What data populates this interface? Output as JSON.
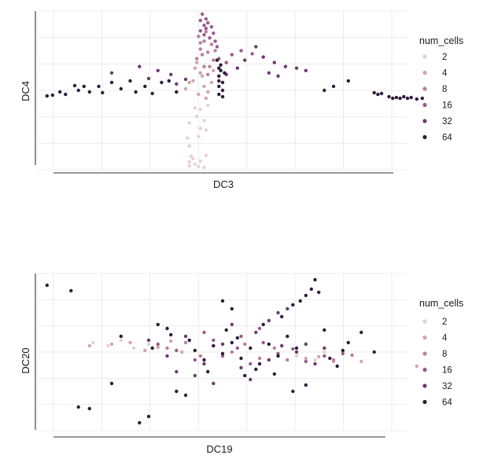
{
  "chart_data": [
    {
      "type": "scatter",
      "xlabel": "DC3",
      "ylabel": "DC4",
      "xlim": [
        -1,
        1
      ],
      "ylim": [
        -1,
        1
      ],
      "tick_labels": "none",
      "grid": true,
      "legend": {
        "title": "num_cells",
        "placement": "right",
        "entries": [
          {
            "label": "2",
            "color": "#e9cfcf"
          },
          {
            "label": "4",
            "color": "#d3a4ad"
          },
          {
            "label": "8",
            "color": "#bc7e9a"
          },
          {
            "label": "16",
            "color": "#99598d"
          },
          {
            "label": "32",
            "color": "#6c3a70"
          },
          {
            "label": "64",
            "color": "#2f1a3b"
          }
        ]
      },
      "series": [
        {
          "name": "2",
          "points": [
            [
              -0.19,
              -0.6
            ],
            [
              -0.18,
              -0.7
            ],
            [
              -0.16,
              -0.86
            ],
            [
              -0.17,
              -0.83
            ],
            [
              -0.18,
              -0.9
            ],
            [
              -0.18,
              -0.95
            ],
            [
              -0.15,
              -0.93
            ],
            [
              -0.13,
              -0.96
            ],
            [
              -0.12,
              -0.89
            ],
            [
              -0.1,
              -0.97
            ],
            [
              -0.09,
              -0.82
            ],
            [
              -0.14,
              -0.33
            ],
            [
              -0.12,
              -0.48
            ],
            [
              -0.09,
              -0.5
            ],
            [
              -0.1,
              -0.38
            ],
            [
              -0.12,
              -0.24
            ],
            [
              -0.08,
              -0.19
            ],
            [
              -0.15,
              -0.22
            ],
            [
              -0.18,
              -0.41
            ],
            [
              -0.13,
              -0.58
            ]
          ]
        },
        {
          "name": "4",
          "points": [
            [
              -0.15,
              0.28
            ],
            [
              -0.12,
              0.22
            ],
            [
              -0.16,
              0.12
            ],
            [
              -0.1,
              0.05
            ],
            [
              -0.08,
              -0.02
            ],
            [
              -0.18,
              0.1
            ],
            [
              -0.13,
              -0.05
            ],
            [
              -0.2,
              0.02
            ],
            [
              -0.14,
              0.35
            ],
            [
              -0.05,
              0.25
            ],
            [
              -0.06,
              0.1
            ],
            [
              -0.09,
              -0.1
            ],
            [
              -0.11,
              0.18
            ]
          ]
        },
        {
          "name": "8",
          "points": [
            [
              -0.14,
              0.4
            ],
            [
              -0.12,
              0.52
            ],
            [
              -0.1,
              0.62
            ],
            [
              -0.08,
              0.48
            ],
            [
              -0.06,
              0.58
            ],
            [
              -0.13,
              0.68
            ],
            [
              -0.09,
              0.74
            ],
            [
              -0.05,
              0.38
            ],
            [
              -0.07,
              0.3
            ],
            [
              -0.11,
              0.45
            ],
            [
              -0.04,
              0.5
            ],
            [
              -0.12,
              0.6
            ],
            [
              -0.08,
              0.2
            ],
            [
              -0.1,
              0.3
            ]
          ]
        },
        {
          "name": "16",
          "points": [
            [
              -0.12,
              0.75
            ],
            [
              -0.1,
              0.82
            ],
            [
              -0.09,
              0.9
            ],
            [
              -0.11,
              0.96
            ],
            [
              -0.08,
              0.85
            ],
            [
              -0.06,
              0.8
            ],
            [
              -0.05,
              0.72
            ],
            [
              -0.07,
              0.66
            ],
            [
              -0.1,
              0.7
            ],
            [
              -0.04,
              0.62
            ],
            [
              -0.03,
              0.55
            ],
            [
              -0.12,
              0.88
            ],
            [
              -0.09,
              0.78
            ],
            [
              0.05,
              0.45
            ],
            [
              0.1,
              0.5
            ],
            [
              0.16,
              0.46
            ],
            [
              -0.02,
              0.4
            ],
            [
              0.02,
              0.35
            ]
          ]
        },
        {
          "name": "32",
          "points": [
            [
              -0.45,
              0.3
            ],
            [
              -0.35,
              0.25
            ],
            [
              -0.28,
              0.2
            ],
            [
              -0.25,
              0.08
            ],
            [
              0.02,
              0.2
            ],
            [
              0.08,
              0.28
            ],
            [
              0.12,
              0.38
            ],
            [
              0.18,
              0.55
            ],
            [
              0.22,
              0.42
            ],
            [
              0.28,
              0.35
            ],
            [
              0.34,
              0.3
            ],
            [
              0.4,
              0.28
            ],
            [
              -0.6,
              0.22
            ],
            [
              -0.4,
              0.15
            ],
            [
              0.25,
              0.22
            ],
            [
              0.3,
              0.18
            ],
            [
              -0.2,
              0.14
            ],
            [
              0.45,
              0.25
            ]
          ]
        },
        {
          "name": "64",
          "points": [
            [
              -0.02,
              0.28
            ],
            [
              -0.02,
              0.18
            ],
            [
              -0.02,
              0.05
            ],
            [
              -0.02,
              -0.05
            ],
            [
              -0.02,
              0.12
            ],
            [
              0.0,
              0.1
            ],
            [
              0.0,
              0.0
            ],
            [
              0.0,
              -0.08
            ],
            [
              -0.01,
              0.25
            ],
            [
              -0.01,
              0.32
            ],
            [
              -0.03,
              0.38
            ],
            [
              0.01,
              0.22
            ],
            [
              -0.85,
              -0.05
            ],
            [
              -0.88,
              -0.02
            ],
            [
              -0.92,
              -0.06
            ],
            [
              -0.95,
              -0.07
            ],
            [
              -0.78,
              0.0
            ],
            [
              -0.72,
              -0.02
            ],
            [
              -0.67,
              0.05
            ],
            [
              -0.65,
              -0.03
            ],
            [
              -0.6,
              0.1
            ],
            [
              -0.55,
              0.02
            ],
            [
              -0.5,
              0.12
            ],
            [
              -0.47,
              -0.02
            ],
            [
              -0.42,
              0.05
            ],
            [
              -0.38,
              -0.04
            ],
            [
              -0.33,
              0.1
            ],
            [
              -0.29,
              0.12
            ],
            [
              -0.25,
              -0.02
            ],
            [
              -0.75,
              0.05
            ],
            [
              -0.8,
              0.06
            ],
            [
              0.6,
              0.05
            ],
            [
              0.68,
              0.12
            ],
            [
              0.82,
              -0.03
            ],
            [
              0.84,
              -0.05
            ],
            [
              0.86,
              -0.04
            ],
            [
              0.9,
              -0.08
            ],
            [
              0.92,
              -0.1
            ],
            [
              0.94,
              -0.09
            ],
            [
              0.96,
              -0.1
            ],
            [
              0.98,
              -0.08
            ],
            [
              1.0,
              -0.1
            ],
            [
              1.02,
              -0.09
            ],
            [
              1.05,
              -0.11
            ],
            [
              1.08,
              -0.1
            ],
            [
              0.55,
              0.0
            ]
          ]
        }
      ]
    },
    {
      "type": "scatter",
      "xlabel": "DC19",
      "ylabel": "DC20",
      "xlim": [
        -1,
        1
      ],
      "ylim": [
        -1,
        1
      ],
      "tick_labels": "none",
      "grid": true,
      "legend": {
        "title": "num_cells",
        "placement": "right",
        "entries": [
          {
            "label": "2",
            "color": "#e9cfcf"
          },
          {
            "label": "4",
            "color": "#d3a4ad"
          },
          {
            "label": "8",
            "color": "#bc7e9a"
          },
          {
            "label": "16",
            "color": "#99598d"
          },
          {
            "label": "32",
            "color": "#6c3a70"
          },
          {
            "label": "64",
            "color": "#2f1a3b"
          }
        ]
      },
      "series": [
        {
          "name": "2",
          "points": [
            [
              -0.7,
              0.12
            ],
            [
              -0.62,
              0.08
            ],
            [
              -0.55,
              0.15
            ],
            [
              -0.48,
              0.05
            ],
            [
              -0.4,
              0.1
            ],
            [
              0.4,
              -0.05
            ],
            [
              0.5,
              -0.1
            ],
            [
              0.55,
              0.0
            ]
          ]
        },
        {
          "name": "4",
          "points": [
            [
              -0.72,
              0.08
            ],
            [
              -0.6,
              0.1
            ],
            [
              -0.5,
              0.12
            ],
            [
              -0.42,
              0.02
            ],
            [
              -0.35,
              0.06
            ],
            [
              -0.28,
              0.14
            ],
            [
              -0.22,
              0.0
            ],
            [
              0.45,
              -0.08
            ],
            [
              0.52,
              -0.06
            ],
            [
              0.6,
              -0.12
            ],
            [
              0.75,
              -0.12
            ],
            [
              1.05,
              -0.18
            ]
          ]
        },
        {
          "name": "8",
          "points": [
            [
              -0.3,
              0.05
            ],
            [
              -0.2,
              0.12
            ],
            [
              -0.12,
              -0.05
            ],
            [
              -0.05,
              0.08
            ],
            [
              0.05,
              0.0
            ],
            [
              0.12,
              0.1
            ],
            [
              0.2,
              -0.08
            ],
            [
              0.28,
              0.05
            ],
            [
              0.35,
              -0.1
            ],
            [
              0.6,
              -0.1
            ],
            [
              0.7,
              -0.04
            ]
          ]
        },
        {
          "name": "16",
          "points": [
            [
              -0.35,
              0.1
            ],
            [
              -0.25,
              0.02
            ],
            [
              -0.15,
              -0.1
            ],
            [
              -0.05,
              0.15
            ],
            [
              0.0,
              -0.05
            ],
            [
              0.08,
              0.05
            ],
            [
              0.15,
              -0.15
            ],
            [
              0.22,
              0.12
            ],
            [
              0.3,
              -0.02
            ],
            [
              0.38,
              0.04
            ],
            [
              0.1,
              0.2
            ],
            [
              -0.1,
              0.25
            ],
            [
              0.2,
              0.3
            ],
            [
              0.45,
              -0.12
            ],
            [
              0.55,
              -0.05
            ],
            [
              0.65,
              -0.02
            ]
          ]
        },
        {
          "name": "32",
          "points": [
            [
              -0.4,
              0.15
            ],
            [
              -0.3,
              -0.05
            ],
            [
              -0.2,
              0.2
            ],
            [
              -0.1,
              -0.15
            ],
            [
              0.0,
              0.1
            ],
            [
              0.1,
              -0.2
            ],
            [
              0.18,
              0.25
            ],
            [
              0.25,
              -0.1
            ],
            [
              0.32,
              0.08
            ],
            [
              0.4,
              0.0
            ],
            [
              0.05,
              0.35
            ],
            [
              -0.15,
              -0.3
            ],
            [
              0.15,
              -0.35
            ],
            [
              0.25,
              0.4
            ],
            [
              0.3,
              0.5
            ],
            [
              0.35,
              0.55
            ],
            [
              -0.05,
              -0.4
            ],
            [
              -0.25,
              -0.25
            ],
            [
              0.45,
              0.1
            ],
            [
              0.5,
              -0.15
            ],
            [
              0.55,
              0.05
            ]
          ]
        },
        {
          "name": "64",
          "points": [
            [
              -0.95,
              0.85
            ],
            [
              -0.82,
              0.78
            ],
            [
              -0.78,
              -0.7
            ],
            [
              -0.72,
              -0.72
            ],
            [
              -0.6,
              -0.4
            ],
            [
              -0.55,
              0.2
            ],
            [
              -0.45,
              -0.9
            ],
            [
              -0.4,
              -0.82
            ],
            [
              -0.35,
              0.35
            ],
            [
              -0.3,
              0.3
            ],
            [
              -0.25,
              -0.5
            ],
            [
              -0.2,
              -0.55
            ],
            [
              -0.15,
              0.02
            ],
            [
              -0.1,
              -0.1
            ],
            [
              -0.05,
              0.08
            ],
            [
              0.0,
              -0.02
            ],
            [
              0.05,
              0.12
            ],
            [
              0.1,
              -0.08
            ],
            [
              0.15,
              0.05
            ],
            [
              0.2,
              -0.15
            ],
            [
              0.25,
              0.1
            ],
            [
              0.3,
              -0.05
            ],
            [
              0.35,
              0.2
            ],
            [
              0.4,
              0.05
            ],
            [
              -0.08,
              -0.25
            ],
            [
              0.02,
              0.28
            ],
            [
              0.12,
              -0.3
            ],
            [
              0.22,
              0.35
            ],
            [
              0.32,
              0.45
            ],
            [
              0.38,
              0.6
            ],
            [
              0.42,
              0.65
            ],
            [
              0.45,
              0.72
            ],
            [
              0.48,
              0.8
            ],
            [
              0.5,
              0.92
            ],
            [
              0.52,
              0.76
            ],
            [
              0.55,
              0.28
            ],
            [
              0.45,
              -0.42
            ],
            [
              0.38,
              -0.5
            ],
            [
              0.62,
              -0.18
            ],
            [
              0.68,
              0.12
            ],
            [
              0.75,
              0.25
            ],
            [
              0.82,
              0.0
            ],
            [
              -0.18,
              0.15
            ],
            [
              -0.28,
              0.22
            ],
            [
              0.08,
              0.18
            ],
            [
              0.18,
              -0.22
            ],
            [
              0.28,
              -0.28
            ],
            [
              0.0,
              0.65
            ],
            [
              0.05,
              0.55
            ],
            [
              -0.38,
              0.05
            ],
            [
              0.58,
              -0.08
            ],
            [
              0.65,
              0.02
            ]
          ]
        }
      ]
    }
  ]
}
